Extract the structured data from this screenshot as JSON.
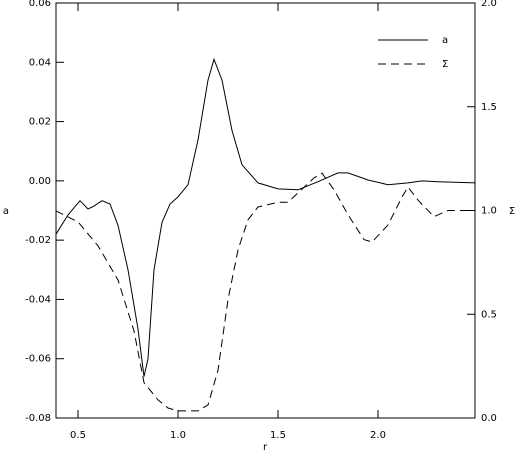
{
  "chart_data": {
    "type": "line",
    "xlabel": "r",
    "ylabel": "a",
    "y2label": "Σ",
    "xlim": [
      0.39,
      2.485
    ],
    "ylim": [
      -0.08,
      0.06
    ],
    "y2lim": [
      0,
      2
    ],
    "xticks": [
      0.5,
      {
        "value": 1,
        "label": "1.0"
      },
      1.5,
      {
        "value": 2,
        "label": "2.0"
      }
    ],
    "yticks": [
      -0.08,
      -0.06,
      -0.04,
      -0.02,
      {
        "value": 0,
        "label": "0.00"
      },
      0.02,
      0.04,
      0.06
    ],
    "y2ticks": [
      {
        "value": 0,
        "label": "0.0"
      },
      0.5,
      {
        "value": 1,
        "label": "1.0"
      },
      1.5,
      {
        "value": 2,
        "label": "2.0"
      }
    ],
    "legend": "upper right",
    "series": [
      {
        "name": "a",
        "color": "#000000",
        "linestyle": "solid",
        "x": [
          0.39,
          0.45,
          0.51,
          0.55,
          0.58,
          0.62,
          0.66,
          0.7,
          0.75,
          0.8,
          0.83,
          0.85,
          0.88,
          0.92,
          0.96,
          1.0,
          1.05,
          1.1,
          1.15,
          1.18,
          1.22,
          1.27,
          1.32,
          1.4,
          1.5,
          1.6,
          1.7,
          1.8,
          1.85,
          1.95,
          2.05,
          2.15,
          2.22,
          2.3,
          2.485
        ],
        "values": [
          -0.018,
          -0.0115,
          -0.0067,
          -0.0095,
          -0.0085,
          -0.0067,
          -0.0078,
          -0.015,
          -0.03,
          -0.05,
          -0.066,
          -0.06,
          -0.03,
          -0.014,
          -0.0078,
          -0.0054,
          -0.0013,
          0.0138,
          0.034,
          0.041,
          0.034,
          0.017,
          0.0054,
          -0.0007,
          -0.0027,
          -0.003,
          -0.0003,
          0.0027,
          0.0027,
          0.0003,
          -0.0013,
          -0.0007,
          0,
          -0.0003,
          -0.0007
        ]
      },
      {
        "name": "Σ",
        "color": "#000000",
        "linestyle": "dashed",
        "axis": "y2",
        "x": [
          0.39,
          0.5,
          0.6,
          0.7,
          0.78,
          0.83,
          0.86,
          0.9,
          0.95,
          1.0,
          1.1,
          1.15,
          1.2,
          1.25,
          1.3,
          1.35,
          1.4,
          1.5,
          1.55,
          1.6,
          1.68,
          1.72,
          1.78,
          1.85,
          1.93,
          1.97,
          2.05,
          2.12,
          2.15,
          2.2,
          2.28,
          2.35,
          2.4,
          2.485
        ],
        "values": [
          0.998,
          0.945,
          0.83,
          0.665,
          0.42,
          0.17,
          0.135,
          0.087,
          0.048,
          0.034,
          0.034,
          0.063,
          0.23,
          0.57,
          0.81,
          0.955,
          1.017,
          1.04,
          1.04,
          1.085,
          1.157,
          1.18,
          1.1,
          0.98,
          0.86,
          0.848,
          0.93,
          1.065,
          1.113,
          1.05,
          0.97,
          1.0,
          1.0,
          1.0
        ]
      }
    ]
  }
}
